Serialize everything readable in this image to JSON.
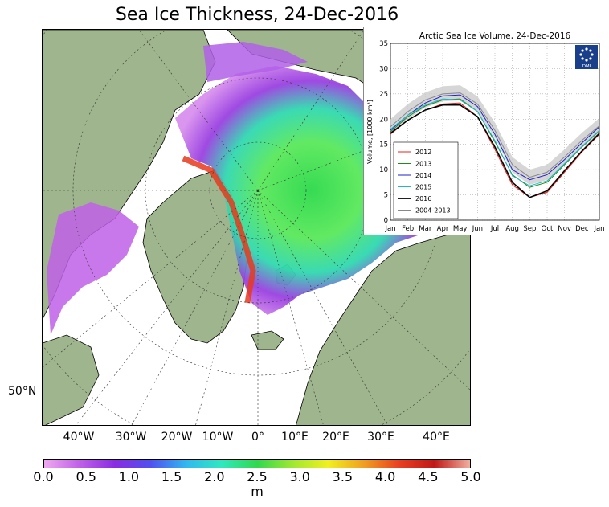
{
  "map": {
    "title": "Sea Ice Thickness, 24-Dec-2016",
    "lon_labels": [
      "40°W",
      "30°W",
      "20°W",
      "10°W",
      "0°",
      "10°E",
      "20°E",
      "30°E",
      "40°E"
    ],
    "lat_label": "50°N",
    "colors": {
      "land": "#9fb58e",
      "ocean": "#ffffff",
      "ice_thin": "#d480e8",
      "ice_mid": "#29d94d",
      "ice_thick": "#e83a1c"
    },
    "colorbar": {
      "ticks": [
        "0.0",
        "0.5",
        "1.0",
        "1.5",
        "2.0",
        "2.5",
        "3.0",
        "3.5",
        "4.0",
        "4.5",
        "5.0"
      ],
      "unit": "m",
      "stops": [
        "#f0a8f0",
        "#c060e8",
        "#8a2be2",
        "#5050f0",
        "#30b8f0",
        "#30e8c0",
        "#30d850",
        "#a0e830",
        "#f0f020",
        "#f0a020",
        "#e84020",
        "#c01818",
        "#f0b0a0"
      ]
    }
  },
  "chart_data": {
    "type": "line",
    "title": "Arctic Sea Ice Volume, 24-Dec-2016",
    "ylabel": "Volume, [1000 km³]",
    "xlabel": "",
    "categories": [
      "Jan",
      "Feb",
      "Mar",
      "Apr",
      "May",
      "Jun",
      "Jul",
      "Aug",
      "Sep",
      "Oct",
      "Nov",
      "Dec",
      "Jan"
    ],
    "ylim": [
      0,
      35
    ],
    "yticks": [
      "0",
      "5",
      "10",
      "15",
      "20",
      "25",
      "30",
      "35"
    ],
    "grid": true,
    "legend_position": "bottom-left",
    "logo_text": "DMI",
    "series": [
      {
        "name": "2012",
        "color": "#e8201c",
        "values": [
          17.0,
          19.8,
          21.8,
          23.0,
          23.2,
          20.5,
          14.0,
          7.0,
          4.5,
          5.5,
          9.5,
          13.5,
          17.0
        ]
      },
      {
        "name": "2013",
        "color": "#1f8a1f",
        "values": [
          17.5,
          20.5,
          22.6,
          23.8,
          24.0,
          21.5,
          15.5,
          9.0,
          6.5,
          7.5,
          11.0,
          14.5,
          17.7
        ]
      },
      {
        "name": "2014",
        "color": "#2020c8",
        "values": [
          17.8,
          20.8,
          23.2,
          24.6,
          24.8,
          22.5,
          17.0,
          10.0,
          8.0,
          9.0,
          12.0,
          15.3,
          18.5
        ]
      },
      {
        "name": "2015",
        "color": "#20b8c8",
        "values": [
          18.0,
          20.8,
          22.8,
          24.0,
          23.8,
          21.5,
          15.8,
          8.8,
          6.8,
          7.8,
          11.2,
          14.6,
          17.8
        ]
      },
      {
        "name": "2016",
        "color": "#000000",
        "values": [
          17.2,
          19.8,
          21.8,
          22.8,
          22.8,
          20.5,
          14.5,
          7.5,
          4.5,
          5.8,
          9.8,
          13.7,
          17.2
        ]
      },
      {
        "name": "2004-2013",
        "color": "#888888",
        "values": [
          18.5,
          21.5,
          23.8,
          25.0,
          25.2,
          23.0,
          17.8,
          11.0,
          8.5,
          9.5,
          12.5,
          15.8,
          18.7
        ]
      }
    ]
  }
}
